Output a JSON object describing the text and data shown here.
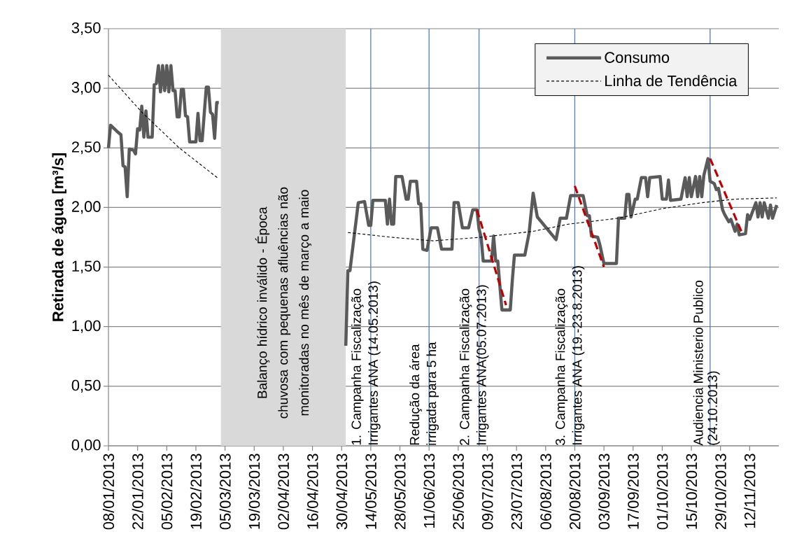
{
  "chart_data": {
    "type": "line",
    "ylabel": "Retirada de água [m³/s]",
    "xlim": [
      "2013-01-08",
      "2013-11-26"
    ],
    "ylim": [
      0,
      3.5
    ],
    "xticks": [
      {
        "value": "2013-01-08",
        "label": "08/01/2013"
      },
      {
        "value": "2013-01-22",
        "label": "22/01/2013"
      },
      {
        "value": "2013-02-05",
        "label": "05/02/2013"
      },
      {
        "value": "2013-02-19",
        "label": "19/02/2013"
      },
      {
        "value": "2013-03-05",
        "label": "05/03/2013"
      },
      {
        "value": "2013-03-19",
        "label": "19/03/2013"
      },
      {
        "value": "2013-04-02",
        "label": "02/04/2013"
      },
      {
        "value": "2013-04-16",
        "label": "16/04/2013"
      },
      {
        "value": "2013-04-30",
        "label": "30/04/2013"
      },
      {
        "value": "2013-05-14",
        "label": "14/05/2013"
      },
      {
        "value": "2013-05-28",
        "label": "28/05/2013"
      },
      {
        "value": "2013-06-11",
        "label": "11/06/2013"
      },
      {
        "value": "2013-06-25",
        "label": "25/06/2013"
      },
      {
        "value": "2013-07-09",
        "label": "09/07/2013"
      },
      {
        "value": "2013-07-23",
        "label": "23/07/2013"
      },
      {
        "value": "2013-08-06",
        "label": "06/08/2013"
      },
      {
        "value": "2013-08-20",
        "label": "20/08/2013"
      },
      {
        "value": "2013-09-03",
        "label": "03/09/2013"
      },
      {
        "value": "2013-09-17",
        "label": "17/09/2013"
      },
      {
        "value": "2013-10-01",
        "label": "01/10/2013"
      },
      {
        "value": "2013-10-15",
        "label": "15/10/2013"
      },
      {
        "value": "2013-10-29",
        "label": "29/10/2013"
      },
      {
        "value": "2013-11-12",
        "label": "12/11/2013"
      }
    ],
    "yticks": [
      {
        "value": 0,
        "label": "0,00"
      },
      {
        "value": 0.5,
        "label": "0,50"
      },
      {
        "value": 1,
        "label": "1,00"
      },
      {
        "value": 1.5,
        "label": "1,50"
      },
      {
        "value": 2,
        "label": "2,00"
      },
      {
        "value": 2.5,
        "label": "2,50"
      },
      {
        "value": 3,
        "label": "3,00"
      },
      {
        "value": 3.5,
        "label": "3,50"
      }
    ],
    "grid": "y",
    "legend": "top right",
    "series": [
      {
        "name": "Consumo",
        "color": "#5a5a5a",
        "x": [
          "2013-01-08",
          "2013-01-09",
          "2013-01-12",
          "2013-01-14",
          "2013-01-15",
          "2013-01-16",
          "2013-01-17",
          "2013-01-18",
          "2013-01-20",
          "2013-01-21",
          "2013-01-22",
          "2013-01-23",
          "2013-01-24",
          "2013-01-25",
          "2013-01-26",
          "2013-01-27",
          "2013-01-29",
          "2013-01-30",
          "2013-01-31",
          "2013-02-01",
          "2013-02-02",
          "2013-02-03",
          "2013-02-04",
          "2013-02-05",
          "2013-02-06",
          "2013-02-07",
          "2013-02-08",
          "2013-02-09",
          "2013-02-10",
          "2013-02-11",
          "2013-02-12",
          "2013-02-13",
          "2013-02-14",
          "2013-02-15",
          "2013-02-16",
          "2013-02-19",
          "2013-02-20",
          "2013-02-21",
          "2013-02-22",
          "2013-02-24",
          "2013-02-25",
          "2013-02-26",
          "2013-02-27",
          "2013-02-28",
          "2013-03-01",
          "2013-03-02",
          "2013-04-01",
          "2013-05-02",
          "2013-05-03",
          "2013-05-04",
          "2013-05-08",
          "2013-05-11",
          "2013-05-13",
          "2013-05-14",
          "2013-05-15",
          "2013-05-21",
          "2013-05-22",
          "2013-05-23",
          "2013-05-24",
          "2013-05-25",
          "2013-05-26",
          "2013-05-29",
          "2013-05-31",
          "2013-06-01",
          "2013-06-02",
          "2013-06-05",
          "2013-06-06",
          "2013-06-07",
          "2013-06-08",
          "2013-06-10",
          "2013-06-12",
          "2013-06-15",
          "2013-06-17",
          "2013-06-22",
          "2013-06-23",
          "2013-06-25",
          "2013-06-27",
          "2013-06-30",
          "2013-07-02",
          "2013-07-04",
          "2013-07-05",
          "2013-07-06",
          "2013-07-07",
          "2013-07-11",
          "2013-07-12",
          "2013-07-13",
          "2013-07-14",
          "2013-07-16",
          "2013-07-20",
          "2013-07-21",
          "2013-07-22",
          "2013-07-27",
          "2013-07-29",
          "2013-07-31",
          "2013-08-02",
          "2013-08-11",
          "2013-08-13",
          "2013-08-16",
          "2013-08-18",
          "2013-08-24",
          "2013-08-26",
          "2013-08-27",
          "2013-08-28",
          "2013-08-31",
          "2013-09-01",
          "2013-09-03",
          "2013-09-09",
          "2013-09-10",
          "2013-09-13",
          "2013-09-14",
          "2013-09-15",
          "2013-09-16",
          "2013-09-18",
          "2013-09-19",
          "2013-09-21",
          "2013-09-23",
          "2013-09-24",
          "2013-09-25",
          "2013-09-30",
          "2013-10-01",
          "2013-10-03",
          "2013-10-04",
          "2013-10-05",
          "2013-10-10",
          "2013-10-12",
          "2013-10-13",
          "2013-10-14",
          "2013-10-15",
          "2013-10-17",
          "2013-10-18",
          "2013-10-19",
          "2013-10-20",
          "2013-10-21",
          "2013-10-23",
          "2013-10-24",
          "2013-10-26",
          "2013-10-27",
          "2013-10-28",
          "2013-10-30",
          "2013-10-31",
          "2013-11-02",
          "2013-11-03",
          "2013-11-05",
          "2013-11-06",
          "2013-11-07",
          "2013-11-10",
          "2013-11-11",
          "2013-11-12",
          "2013-11-15",
          "2013-11-16",
          "2013-11-17",
          "2013-11-18",
          "2013-11-19",
          "2013-11-21",
          "2013-11-22",
          "2013-11-23",
          "2013-11-25"
        ],
        "values": [
          2.5,
          2.69,
          2.64,
          2.61,
          2.35,
          2.34,
          2.09,
          2.49,
          2.48,
          2.45,
          2.66,
          2.65,
          2.85,
          2.59,
          2.81,
          2.59,
          2.59,
          3.03,
          3.04,
          3.19,
          2.97,
          3.19,
          2.98,
          3.19,
          2.97,
          3.19,
          2.98,
          2.98,
          2.76,
          2.76,
          2.99,
          2.99,
          2.77,
          2.76,
          2.55,
          2.55,
          2.79,
          2.56,
          2.56,
          3.01,
          3.01,
          2.8,
          2.78,
          2.58,
          2.88,
          2.88,
          null,
          0.84,
          1.47,
          1.47,
          2.04,
          2.05,
          1.85,
          1.85,
          2.06,
          2.06,
          1.86,
          2.07,
          1.86,
          1.86,
          2.26,
          2.26,
          2.07,
          2.07,
          2.22,
          2.22,
          2.03,
          2.03,
          1.65,
          1.64,
          1.83,
          1.83,
          1.65,
          1.65,
          2.04,
          2.04,
          1.83,
          1.83,
          1.98,
          1.98,
          1.82,
          1.75,
          1.55,
          1.55,
          1.76,
          1.55,
          1.55,
          1.14,
          1.14,
          1.39,
          1.6,
          1.6,
          1.78,
          2.12,
          1.92,
          1.73,
          1.91,
          1.91,
          2.1,
          2.1,
          1.93,
          1.93,
          1.76,
          1.75,
          1.69,
          1.53,
          1.53,
          1.91,
          1.91,
          2.11,
          2.11,
          1.92,
          2.07,
          2.07,
          2.25,
          2.25,
          2.09,
          2.25,
          2.26,
          2.07,
          2.07,
          2.23,
          2.06,
          2.07,
          2.25,
          2.09,
          2.25,
          2.09,
          2.26,
          2.09,
          2.26,
          2.09,
          2.27,
          2.41,
          2.22,
          2.2,
          2.15,
          2.16,
          1.98,
          1.94,
          1.88,
          1.9,
          1.8,
          1.86,
          1.77,
          1.78,
          1.94,
          1.9,
          2.04,
          1.92,
          2.04,
          1.92,
          2.04,
          1.91,
          2.02,
          1.91,
          2.02
        ]
      },
      {
        "name": "Linha de Tendência",
        "color": "#000000",
        "line_style": "dashed",
        "x": [
          "2013-01-08",
          "2013-01-24",
          "2013-02-11",
          "2013-03-02",
          "2013-04-01",
          "2013-05-03",
          "2013-05-24",
          "2013-06-13",
          "2013-07-06",
          "2013-07-31",
          "2013-08-17",
          "2013-09-10",
          "2013-10-01",
          "2013-10-20",
          "2013-11-05",
          "2013-11-25"
        ],
        "values": [
          3.11,
          2.8,
          2.5,
          2.24,
          null,
          1.79,
          1.75,
          1.72,
          1.75,
          1.8,
          1.86,
          1.91,
          1.99,
          2.04,
          2.07,
          2.08
        ]
      },
      {
        "color": "#c00000",
        "line_style": "dashed",
        "x": [
          "2013-07-04",
          "2013-07-18"
        ],
        "values": [
          1.98,
          1.18
        ]
      },
      {
        "color": "#c00000",
        "line_style": "dashed",
        "x": [
          "2013-08-20",
          "2013-09-03"
        ],
        "values": [
          2.18,
          1.5
        ]
      },
      {
        "color": "#c00000",
        "line_style": "dashed",
        "x": [
          "2013-10-24",
          "2013-11-08"
        ],
        "values": [
          2.41,
          1.8
        ]
      }
    ],
    "bands": [
      {
        "axis": "x",
        "from": "2013-03-03",
        "to": "2013-05-02",
        "color": "#d9d9d9",
        "label": "Balanço hídrico inválido - Época chuvosa com pequenas afluências não monitoradas no mês de março a maio"
      }
    ],
    "ref_lines": [
      {
        "axis": "x",
        "value": "2013-05-14",
        "color": "#4f81bd",
        "label": "1. Campanha Fiscalização"
      },
      {
        "axis": "x",
        "value": "2013-06-11",
        "color": "#4f81bd",
        "label": "Redução da área"
      },
      {
        "axis": "x",
        "value": "2013-07-05",
        "color": "#4f81bd",
        "label": "2. Campanha Fiscalização"
      },
      {
        "axis": "x",
        "value": "2013-08-20",
        "color": "#4f81bd",
        "label": "3. Campanha Fiscalização"
      },
      {
        "axis": "x",
        "value": "2013-10-24",
        "color": "#4f81bd",
        "label": "Audiencia Ministerio Publico"
      }
    ],
    "annotations": [
      {
        "text": "Irrigantes ANA (14.05.2013)",
        "x": "2013-05-14",
        "y": 0
      },
      {
        "text": "irrigada para 5 ha",
        "x": "2013-06-11",
        "y": 0
      },
      {
        "text": "Irrigantes ANA(05.07.2013)",
        "x": "2013-07-05",
        "y": 0
      },
      {
        "text": "Irrigantes ANA (19.-23.8.2013)",
        "x": "2013-08-20",
        "y": 0
      },
      {
        "text": "(24.10.2013)",
        "x": "2013-10-24",
        "y": 0
      }
    ]
  }
}
